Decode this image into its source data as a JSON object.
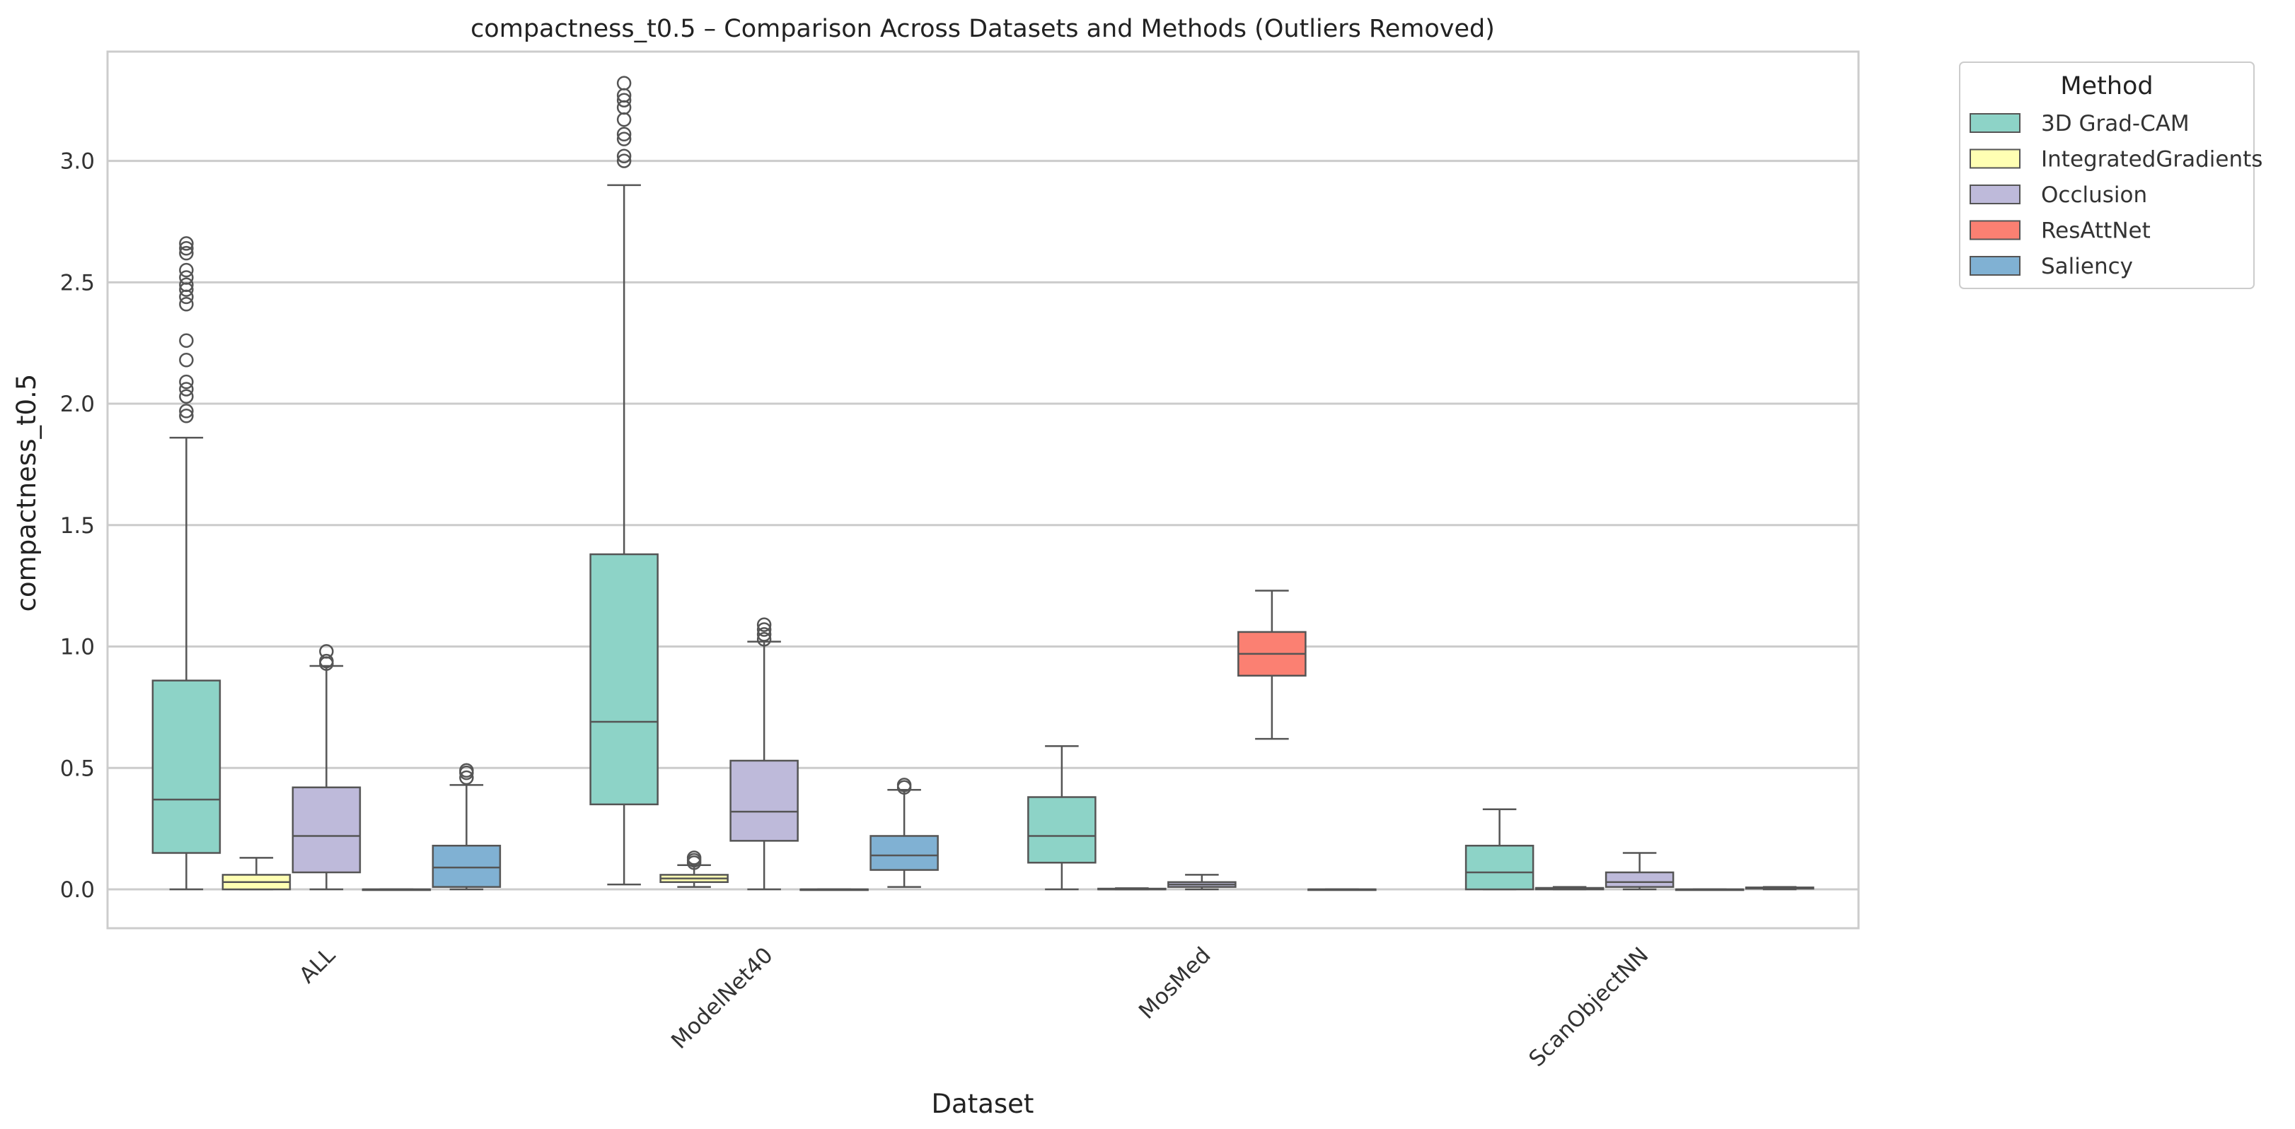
{
  "chart_data": {
    "type": "boxplot",
    "title": "compactness_t0.5 – Comparison Across Datasets and Methods (Outliers Removed)",
    "xlabel": "Dataset",
    "ylabel": "compactness_t0.5",
    "ylim": [
      -0.16,
      3.45
    ],
    "yticks": [
      0.0,
      0.5,
      1.0,
      1.5,
      2.0,
      2.5,
      3.0
    ],
    "ytick_labels": [
      "0.0",
      "0.5",
      "1.0",
      "1.5",
      "2.0",
      "2.5",
      "3.0"
    ],
    "grid": "horizontal",
    "categories": [
      "ALL",
      "ModelNet40",
      "MosMed",
      "ScanObjectNN"
    ],
    "legend": {
      "title": "Method",
      "position": "outside-top-right",
      "entries": [
        "3D Grad-CAM",
        "IntegratedGradients",
        "Occlusion",
        "ResAttNet",
        "Saliency"
      ]
    },
    "colors": {
      "3D Grad-CAM": "#8dd3c7",
      "IntegratedGradients": "#ffffb3",
      "Occlusion": "#bebada",
      "ResAttNet": "#fb8072",
      "Saliency": "#80b1d3",
      "stroke": "#555555",
      "grid": "#cccccc"
    },
    "series": [
      {
        "name": "3D Grad-CAM",
        "boxes": [
          {
            "category": "ALL",
            "whislo": 0.0,
            "q1": 0.15,
            "med": 0.37,
            "q3": 0.86,
            "whishi": 1.86,
            "fliers": [
              1.95,
              1.97,
              2.03,
              2.06,
              2.09,
              2.18,
              2.26,
              2.41,
              2.44,
              2.47,
              2.49,
              2.52,
              2.55,
              2.62,
              2.64,
              2.66
            ]
          },
          {
            "category": "ModelNet40",
            "whislo": 0.02,
            "q1": 0.35,
            "med": 0.69,
            "q3": 1.38,
            "whishi": 2.9,
            "fliers": [
              3.0,
              3.02,
              3.09,
              3.11,
              3.17,
              3.22,
              3.25,
              3.27,
              3.32
            ]
          },
          {
            "category": "MosMed",
            "whislo": 0.0,
            "q1": 0.11,
            "med": 0.22,
            "q3": 0.38,
            "whishi": 0.59,
            "fliers": []
          },
          {
            "category": "ScanObjectNN",
            "whislo": 0.0,
            "q1": 0.0,
            "med": 0.07,
            "q3": 0.18,
            "whishi": 0.33,
            "fliers": []
          }
        ]
      },
      {
        "name": "IntegratedGradients",
        "boxes": [
          {
            "category": "ALL",
            "whislo": 0.0,
            "q1": 0.0,
            "med": 0.03,
            "q3": 0.06,
            "whishi": 0.13,
            "fliers": []
          },
          {
            "category": "ModelNet40",
            "whislo": 0.01,
            "q1": 0.03,
            "med": 0.045,
            "q3": 0.06,
            "whishi": 0.1,
            "fliers": [
              0.11,
              0.12,
              0.13
            ]
          },
          {
            "category": "MosMed",
            "whislo": 0.0,
            "q1": 0.0,
            "med": 0.0,
            "q3": 0.003,
            "whishi": 0.005,
            "fliers": []
          },
          {
            "category": "ScanObjectNN",
            "whislo": 0.0,
            "q1": 0.0,
            "med": 0.003,
            "q3": 0.006,
            "whishi": 0.01,
            "fliers": []
          }
        ]
      },
      {
        "name": "Occlusion",
        "boxes": [
          {
            "category": "ALL",
            "whislo": 0.0,
            "q1": 0.07,
            "med": 0.22,
            "q3": 0.42,
            "whishi": 0.92,
            "fliers": [
              0.93,
              0.94,
              0.98
            ]
          },
          {
            "category": "ModelNet40",
            "whislo": 0.0,
            "q1": 0.2,
            "med": 0.32,
            "q3": 0.53,
            "whishi": 1.02,
            "fliers": [
              1.03,
              1.05,
              1.07,
              1.09
            ]
          },
          {
            "category": "MosMed",
            "whislo": 0.0,
            "q1": 0.01,
            "med": 0.02,
            "q3": 0.03,
            "whishi": 0.06,
            "fliers": []
          },
          {
            "category": "ScanObjectNN",
            "whislo": 0.0,
            "q1": 0.01,
            "med": 0.03,
            "q3": 0.07,
            "whishi": 0.15,
            "fliers": []
          }
        ]
      },
      {
        "name": "ResAttNet",
        "boxes": [
          {
            "category": "ALL",
            "whislo": 0.0,
            "q1": 0.0,
            "med": 0.0,
            "q3": 0.0,
            "whishi": 0.0,
            "fliers": []
          },
          {
            "category": "ModelNet40",
            "whislo": 0.0,
            "q1": 0.0,
            "med": 0.0,
            "q3": 0.0,
            "whishi": 0.0,
            "fliers": []
          },
          {
            "category": "MosMed",
            "whislo": 0.62,
            "q1": 0.88,
            "med": 0.97,
            "q3": 1.06,
            "whishi": 1.23,
            "fliers": []
          },
          {
            "category": "ScanObjectNN",
            "whislo": 0.0,
            "q1": 0.0,
            "med": 0.0,
            "q3": 0.0,
            "whishi": 0.0,
            "fliers": []
          }
        ]
      },
      {
        "name": "Saliency",
        "boxes": [
          {
            "category": "ALL",
            "whislo": 0.0,
            "q1": 0.01,
            "med": 0.09,
            "q3": 0.18,
            "whishi": 0.43,
            "fliers": [
              0.46,
              0.48,
              0.49
            ]
          },
          {
            "category": "ModelNet40",
            "whislo": 0.01,
            "q1": 0.08,
            "med": 0.14,
            "q3": 0.22,
            "whishi": 0.41,
            "fliers": [
              0.42,
              0.43
            ]
          },
          {
            "category": "MosMed",
            "whislo": 0.0,
            "q1": 0.0,
            "med": 0.0,
            "q3": 0.0,
            "whishi": 0.0,
            "fliers": []
          },
          {
            "category": "ScanObjectNN",
            "whislo": 0.0,
            "q1": 0.003,
            "med": 0.005,
            "q3": 0.008,
            "whishi": 0.01,
            "fliers": []
          }
        ]
      }
    ]
  }
}
